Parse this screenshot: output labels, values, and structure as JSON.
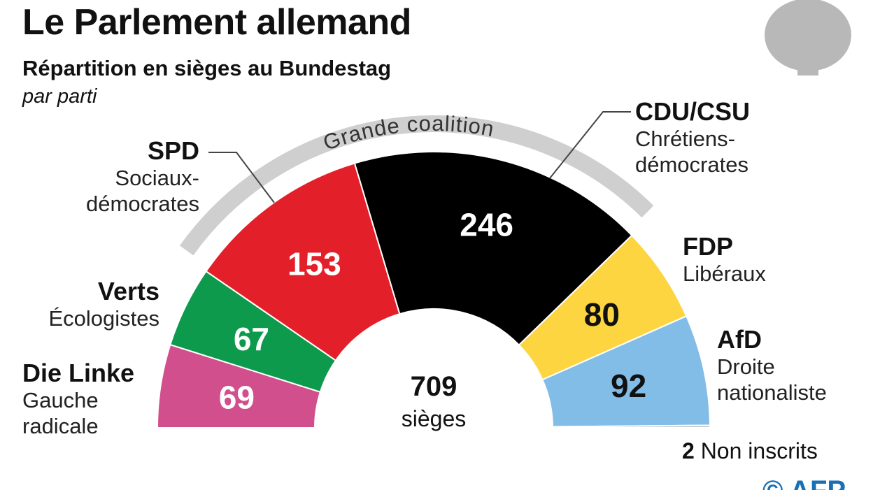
{
  "title": "Le Parlement allemand",
  "subtitle": "Répartition en sièges au Bundestag",
  "subsubtitle": "par parti",
  "coalition_label": "Grande coalition",
  "total": {
    "value": "709",
    "unit": "sièges"
  },
  "non_inscrits": {
    "value": "2",
    "label": "Non inscrits"
  },
  "credit": "© AFP",
  "chart_data": {
    "type": "pie",
    "variant": "half-donut",
    "total": 709,
    "parties": [
      {
        "name": "Die Linke",
        "desc": "Gauche radicale",
        "value": 69,
        "color": "#d04f8c",
        "label_color": "#ffffff"
      },
      {
        "name": "Verts",
        "desc": "Écologistes",
        "value": 67,
        "color": "#0e9a4d",
        "label_color": "#ffffff"
      },
      {
        "name": "SPD",
        "desc": "Sociaux-démocrates",
        "value": 153,
        "color": "#e3202a",
        "label_color": "#ffffff"
      },
      {
        "name": "CDU/CSU",
        "desc": "Chrétiens-démocrates",
        "value": 246,
        "color": "#000000",
        "label_color": "#ffffff"
      },
      {
        "name": "FDP",
        "desc": "Libéraux",
        "value": 80,
        "color": "#fcd540",
        "label_color": "#111111"
      },
      {
        "name": "AfD",
        "desc": "Droite nationaliste",
        "value": 92,
        "color": "#82bde8",
        "label_color": "#111111"
      },
      {
        "name": "Non inscrits",
        "desc": "",
        "value": 2,
        "color": "#bfbfbf",
        "label_color": "#111111"
      }
    ],
    "coalition": [
      "SPD",
      "CDU/CSU"
    ]
  }
}
